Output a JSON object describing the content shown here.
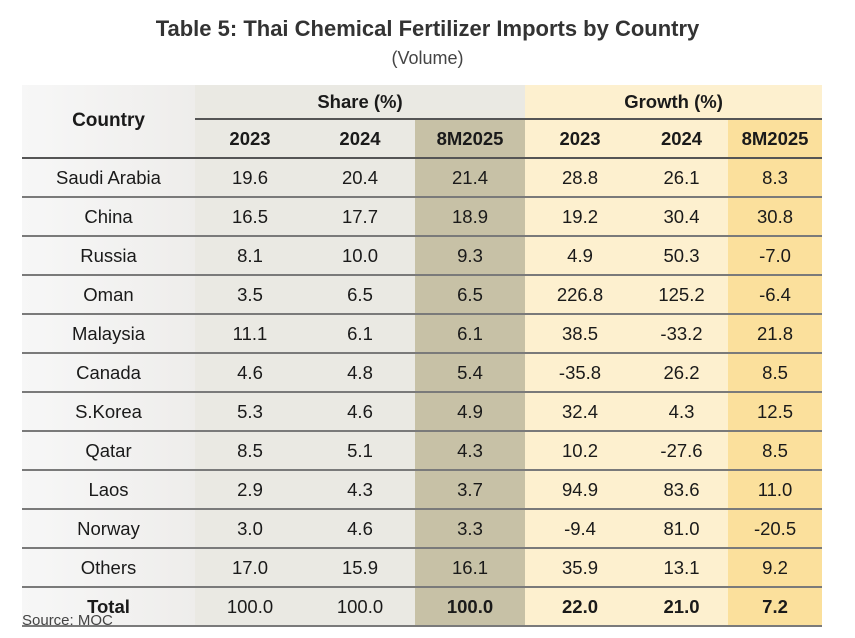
{
  "title": "Table 5: Thai Chemical Fertilizer Imports by Country",
  "subtitle": "(Volume)",
  "header": {
    "country": "Country",
    "share_group": "Share (%)",
    "growth_group": "Growth (%)",
    "share_years": [
      "2023",
      "2024",
      "8M2025"
    ],
    "growth_years": [
      "2023",
      "2024",
      "8M2025"
    ]
  },
  "colors": {
    "share_bg": "#eae9e3",
    "share_highlight": "#c7c1a6",
    "growth_bg": "#fdf0cf",
    "growth_highlight": "#fbe09c"
  },
  "rows": [
    {
      "country": "Saudi Arabia",
      "values": [
        "19.6",
        "20.4",
        "21.4",
        "28.8",
        "26.1",
        "8.3"
      ]
    },
    {
      "country": "China",
      "values": [
        "16.5",
        "17.7",
        "18.9",
        "19.2",
        "30.4",
        "30.8"
      ]
    },
    {
      "country": "Russia",
      "values": [
        "8.1",
        "10.0",
        "9.3",
        "4.9",
        "50.3",
        "-7.0"
      ]
    },
    {
      "country": "Oman",
      "values": [
        "3.5",
        "6.5",
        "6.5",
        "226.8",
        "125.2",
        "-6.4"
      ]
    },
    {
      "country": "Malaysia",
      "values": [
        "11.1",
        "6.1",
        "6.1",
        "38.5",
        "-33.2",
        "21.8"
      ]
    },
    {
      "country": "Canada",
      "values": [
        "4.6",
        "4.8",
        "5.4",
        "-35.8",
        "26.2",
        "8.5"
      ]
    },
    {
      "country": "S.Korea",
      "values": [
        "5.3",
        "4.6",
        "4.9",
        "32.4",
        "4.3",
        "12.5"
      ]
    },
    {
      "country": "Qatar",
      "values": [
        "8.5",
        "5.1",
        "4.3",
        "10.2",
        "-27.6",
        "8.5"
      ]
    },
    {
      "country": "Laos",
      "values": [
        "2.9",
        "4.3",
        "3.7",
        "94.9",
        "83.6",
        "11.0"
      ]
    },
    {
      "country": "Norway",
      "values": [
        "3.0",
        "4.6",
        "3.3",
        "-9.4",
        "81.0",
        "-20.5"
      ]
    },
    {
      "country": "Others",
      "values": [
        "17.0",
        "15.9",
        "16.1",
        "35.9",
        "13.1",
        "9.2"
      ]
    },
    {
      "country": "Total",
      "values": [
        "100.0",
        "100.0",
        "100.0",
        "22.0",
        "21.0",
        "7.2"
      ]
    }
  ],
  "source": "Source: MOC"
}
